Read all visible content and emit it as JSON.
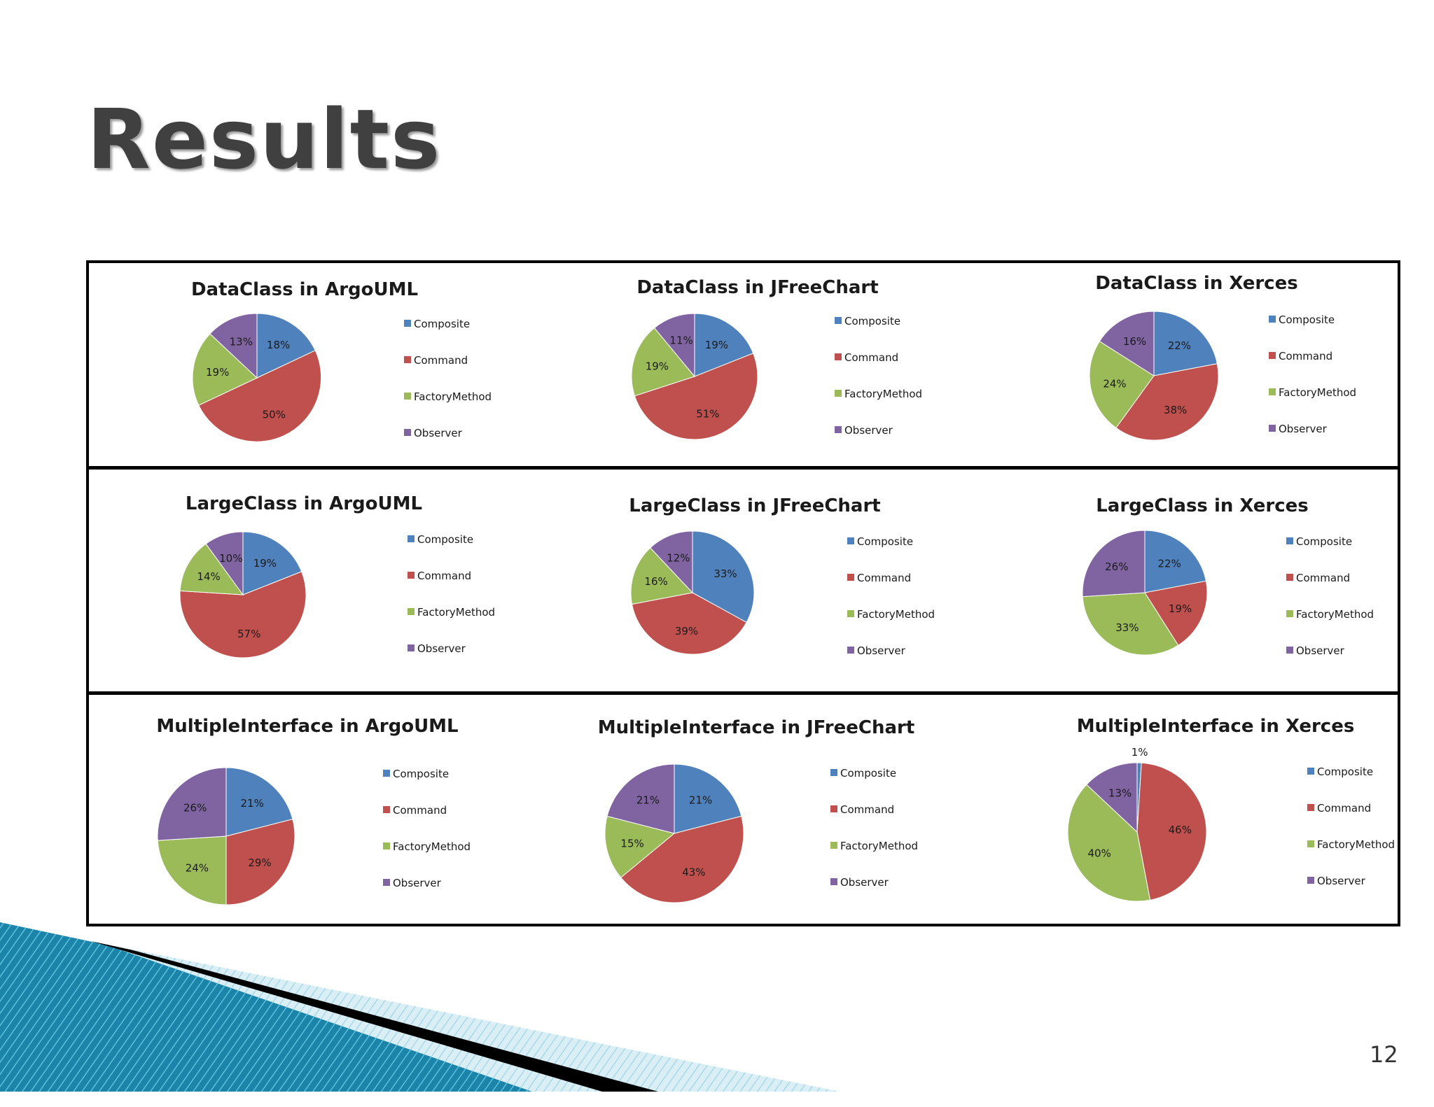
{
  "slide": {
    "title": "Results",
    "page_number": "12"
  },
  "colors": {
    "Composite": "#4f81bd",
    "Command": "#c0504d",
    "FactoryMethod": "#9bbb59",
    "Observer": "#8064a2"
  },
  "chart_data": [
    {
      "type": "pie",
      "title": "DataClass in ArgoUML",
      "categories": [
        "Composite",
        "Command",
        "FactoryMethod",
        "Observer"
      ],
      "values": [
        18,
        50,
        19,
        13
      ],
      "labels": [
        "18%",
        "50%",
        "19%",
        "13%"
      ],
      "legend": [
        "Composite",
        "Command",
        "FactoryMethod",
        "Observer"
      ]
    },
    {
      "type": "pie",
      "title": "DataClass in JFreeChart",
      "categories": [
        "Composite",
        "Command",
        "FactoryMethod",
        "Observer"
      ],
      "values": [
        19,
        51,
        19,
        11
      ],
      "labels": [
        "19%",
        "51%",
        "19%",
        "11%"
      ],
      "legend": [
        "Composite",
        "Command",
        "FactoryMethod",
        "Observer"
      ]
    },
    {
      "type": "pie",
      "title": "DataClass in Xerces",
      "categories": [
        "Composite",
        "Command",
        "FactoryMethod",
        "Observer"
      ],
      "values": [
        22,
        38,
        24,
        16
      ],
      "labels": [
        "22%",
        "38%",
        "24%",
        "16%"
      ],
      "legend": [
        "Composite",
        "Command",
        "FactoryMethod",
        "Observer"
      ]
    },
    {
      "type": "pie",
      "title": "LargeClass in ArgoUML",
      "categories": [
        "Composite",
        "Command",
        "FactoryMethod",
        "Observer"
      ],
      "values": [
        19,
        57,
        14,
        10
      ],
      "labels": [
        "19%",
        "57%",
        "14%",
        "10%"
      ],
      "legend": [
        "Composite",
        "Command",
        "FactoryMethod",
        "Observer"
      ]
    },
    {
      "type": "pie",
      "title": "LargeClass in JFreeChart",
      "categories": [
        "Composite",
        "Command",
        "FactoryMethod",
        "Observer"
      ],
      "values": [
        33,
        39,
        16,
        12
      ],
      "labels": [
        "33%",
        "39%",
        "16%",
        "12%"
      ],
      "legend": [
        "Composite",
        "Command",
        "FactoryMethod",
        "Observer"
      ]
    },
    {
      "type": "pie",
      "title": "LargeClass in Xerces",
      "categories": [
        "Composite",
        "Command",
        "FactoryMethod",
        "Observer"
      ],
      "values": [
        22,
        19,
        33,
        26
      ],
      "labels": [
        "22%",
        "19%",
        "33%",
        "26%"
      ],
      "legend": [
        "Composite",
        "Command",
        "FactoryMethod",
        "Observer"
      ]
    },
    {
      "type": "pie",
      "title": "MultipleInterface in ArgoUML",
      "categories": [
        "Composite",
        "Command",
        "FactoryMethod",
        "Observer"
      ],
      "values": [
        21,
        29,
        24,
        26
      ],
      "labels": [
        "21%",
        "29%",
        "24%",
        "26%"
      ],
      "legend": [
        "Composite",
        "Command",
        "FactoryMethod",
        "Observer"
      ]
    },
    {
      "type": "pie",
      "title": "MultipleInterface in JFreeChart",
      "categories": [
        "Composite",
        "Command",
        "FactoryMethod",
        "Observer"
      ],
      "values": [
        21,
        43,
        15,
        21
      ],
      "labels": [
        "21%",
        "43%",
        "15%",
        "21%"
      ],
      "legend": [
        "Composite",
        "Command",
        "FactoryMethod",
        "Observer"
      ]
    },
    {
      "type": "pie",
      "title": "MultipleInterface in Xerces",
      "categories": [
        "Composite",
        "Command",
        "FactoryMethod",
        "Observer"
      ],
      "values": [
        1,
        46,
        40,
        13
      ],
      "labels": [
        "1%",
        "46%",
        "40%",
        "13%"
      ],
      "legend": [
        "Composite",
        "Command",
        "FactoryMethod",
        "Observer"
      ]
    }
  ]
}
